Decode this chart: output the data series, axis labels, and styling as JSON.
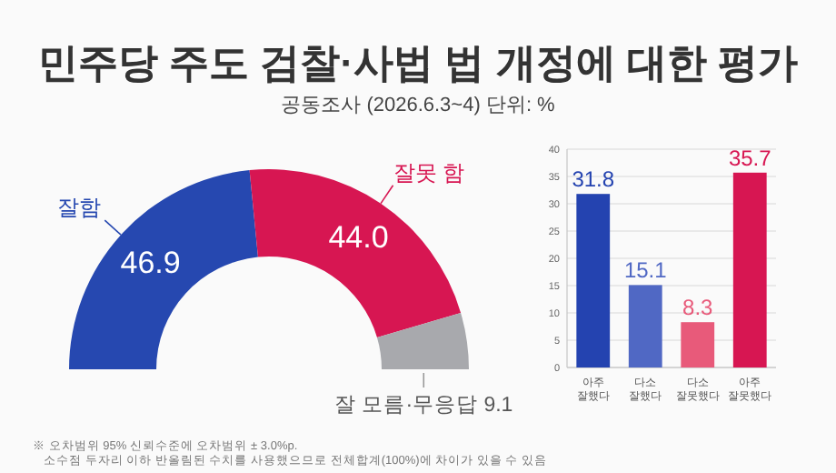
{
  "chart_data": [
    {
      "type": "donut",
      "title": "민주당 주도 검찰·사법 법 개정에 대한 평가",
      "subtitle": "공동조사 (2026.6.3~4) 단위: %",
      "categories": [
        "잘함",
        "잘못 함",
        "잘 모름·무응답"
      ],
      "values": [
        46.9,
        44.0,
        9.1
      ],
      "colors": [
        "#2648b0",
        "#d71652",
        "#a8a9ad"
      ],
      "value_labels": [
        "46.9",
        "44.0",
        "9.1"
      ],
      "annotations": [
        "※ 오차범위 95% 신뢰수준에 오차범위 ± 3.0%p.",
        "소수점 두자리 이하 반올림된 수치를 사용했으므로 전체합계(100%)에 차이가 있을 수 있음"
      ]
    },
    {
      "type": "bar",
      "categories": [
        "아주\n잘했다",
        "다소\n잘했다",
        "다소\n잘못했다",
        "아주\n잘못했다"
      ],
      "values": [
        31.8,
        15.1,
        8.3,
        35.7
      ],
      "colors": [
        "#2443b0",
        "#5068c4",
        "#e85a7a",
        "#d71652"
      ],
      "ylim": [
        0,
        40
      ],
      "yticks": [
        0,
        5,
        10,
        15,
        20,
        25,
        30,
        35,
        40
      ],
      "grid": "y",
      "data_labels": true
    }
  ]
}
